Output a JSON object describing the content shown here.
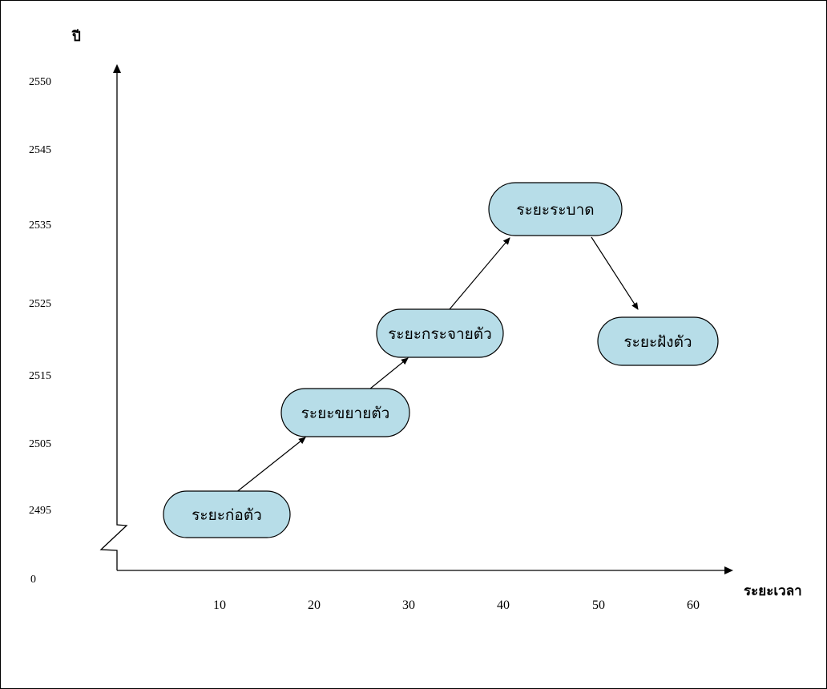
{
  "y_axis": {
    "title": "ปี",
    "ticks": [
      "2550",
      "2545",
      "2535",
      "2525",
      "2515",
      "2505",
      "2495",
      "0"
    ]
  },
  "x_axis": {
    "title": "ระยะเวลา",
    "ticks": [
      "10",
      "20",
      "30",
      "40",
      "50",
      "60"
    ]
  },
  "stages": [
    {
      "label": "ระยะก่อตัว"
    },
    {
      "label": "ระยะขยายตัว"
    },
    {
      "label": "ระยะกระจายตัว"
    },
    {
      "label": "ระยะระบาด"
    },
    {
      "label": "ระยะฝังตัว"
    }
  ],
  "colors": {
    "node_fill": "#b7dde8",
    "stroke": "#000000",
    "background": "#ffffff"
  }
}
